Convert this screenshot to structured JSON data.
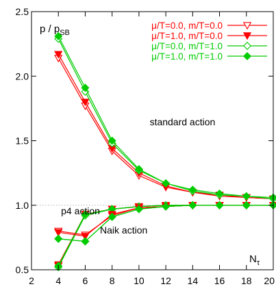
{
  "chart_data": {
    "type": "line",
    "title": "",
    "xlabel_main": "N",
    "xlabel_sub": "τ",
    "ylabel_main": "p / p",
    "ylabel_sub": "SB",
    "xlim": [
      2,
      20
    ],
    "ylim": [
      0.5,
      2.5
    ],
    "xticks": [
      2,
      4,
      6,
      8,
      10,
      12,
      14,
      16,
      18,
      20
    ],
    "xtick_labels": [
      "2",
      "4",
      "6",
      "8",
      "10",
      "12",
      "14",
      "16",
      "18",
      "20"
    ],
    "yticks": [
      0.5,
      1.0,
      1.5,
      2.0,
      2.5
    ],
    "ytick_labels": [
      "0.5",
      "1.0",
      "1.5",
      "2.0",
      "2.5"
    ],
    "reference_line": 1.0,
    "legend_position": "top-right",
    "annotations": [
      {
        "text": "standard action",
        "x": 10.8,
        "y": 1.62
      },
      {
        "text": "p4 action",
        "x": 4.2,
        "y": 0.93
      },
      {
        "text": "Naik action",
        "x": 7.1,
        "y": 0.78
      }
    ],
    "groups": [
      {
        "group": "standard action",
        "series": [
          {
            "legend_index": 0,
            "x": [
              4,
              6,
              8,
              10,
              12,
              14,
              16,
              18,
              20
            ],
            "y": [
              2.14,
              1.77,
              1.42,
              1.23,
              1.14,
              1.1,
              1.07,
              1.06,
              1.05
            ]
          },
          {
            "legend_index": 1,
            "x": [
              4,
              6,
              8,
              10,
              12,
              14,
              16,
              18,
              20
            ],
            "y": [
              2.17,
              1.8,
              1.44,
              1.25,
              1.15,
              1.1,
              1.08,
              1.06,
              1.05
            ]
          },
          {
            "legend_index": 2,
            "x": [
              4,
              6,
              8,
              10,
              12,
              14,
              16,
              18,
              20
            ],
            "y": [
              2.29,
              1.88,
              1.48,
              1.27,
              1.17,
              1.11,
              1.08,
              1.07,
              1.05
            ]
          },
          {
            "legend_index": 3,
            "x": [
              4,
              6,
              8,
              10,
              12,
              14,
              16,
              18,
              20
            ],
            "y": [
              2.31,
              1.91,
              1.5,
              1.28,
              1.17,
              1.12,
              1.09,
              1.07,
              1.06
            ]
          }
        ]
      },
      {
        "group": "p4 action",
        "series": [
          {
            "legend_index": 0,
            "x": [
              4,
              6,
              8,
              10,
              12,
              14,
              16,
              18,
              20
            ],
            "y": [
              0.53,
              0.93,
              0.97,
              0.99,
              1.0,
              1.0,
              1.0,
              1.0,
              1.0
            ]
          },
          {
            "legend_index": 1,
            "x": [
              4,
              6,
              8,
              10,
              12,
              14,
              16,
              18,
              20
            ],
            "y": [
              0.54,
              0.93,
              0.97,
              0.99,
              1.0,
              1.0,
              1.0,
              1.0,
              1.0
            ]
          },
          {
            "legend_index": 2,
            "x": [
              4,
              6,
              8,
              10,
              12,
              14,
              16,
              18,
              20
            ],
            "y": [
              0.52,
              0.92,
              0.97,
              0.99,
              1.0,
              1.0,
              1.0,
              1.0,
              1.0
            ]
          },
          {
            "legend_index": 3,
            "x": [
              4,
              6,
              8,
              10,
              12,
              14,
              16,
              18,
              20
            ],
            "y": [
              0.53,
              0.93,
              0.97,
              0.99,
              1.0,
              1.0,
              1.0,
              1.0,
              1.0
            ]
          }
        ]
      },
      {
        "group": "Naik action",
        "series": [
          {
            "legend_index": 0,
            "x": [
              4,
              6,
              8,
              10,
              12,
              14,
              16,
              18,
              20
            ],
            "y": [
              0.8,
              0.77,
              0.92,
              0.98,
              0.99,
              1.0,
              1.0,
              1.0,
              1.0
            ]
          },
          {
            "legend_index": 1,
            "x": [
              4,
              6,
              8,
              10,
              12,
              14,
              16,
              18,
              20
            ],
            "y": [
              0.79,
              0.76,
              0.93,
              0.98,
              0.99,
              1.0,
              1.0,
              1.0,
              1.0
            ]
          },
          {
            "legend_index": 2,
            "x": [
              4,
              6,
              8,
              10,
              12,
              14,
              16,
              18,
              20
            ],
            "y": [
              0.74,
              0.72,
              0.91,
              0.97,
              0.99,
              1.0,
              1.0,
              1.0,
              1.0
            ]
          },
          {
            "legend_index": 3,
            "x": [
              4,
              6,
              8,
              10,
              12,
              14,
              16,
              18,
              20
            ],
            "y": [
              0.74,
              0.72,
              0.91,
              0.97,
              0.99,
              1.0,
              1.0,
              1.0,
              1.0
            ]
          }
        ]
      }
    ],
    "legend": [
      {
        "label": "μ/T=0.0, m/T=0.0",
        "color": "#ff0000",
        "marker": "triangle-down-open"
      },
      {
        "label": "μ/T=1.0, m/T=0.0",
        "color": "#ff0000",
        "marker": "triangle-down-filled"
      },
      {
        "label": "μ/T=0.0, m/T=1.0",
        "color": "#00cc00",
        "marker": "diamond-open"
      },
      {
        "label": "μ/T=1.0, m/T=1.0",
        "color": "#00cc00",
        "marker": "diamond-filled"
      }
    ]
  }
}
